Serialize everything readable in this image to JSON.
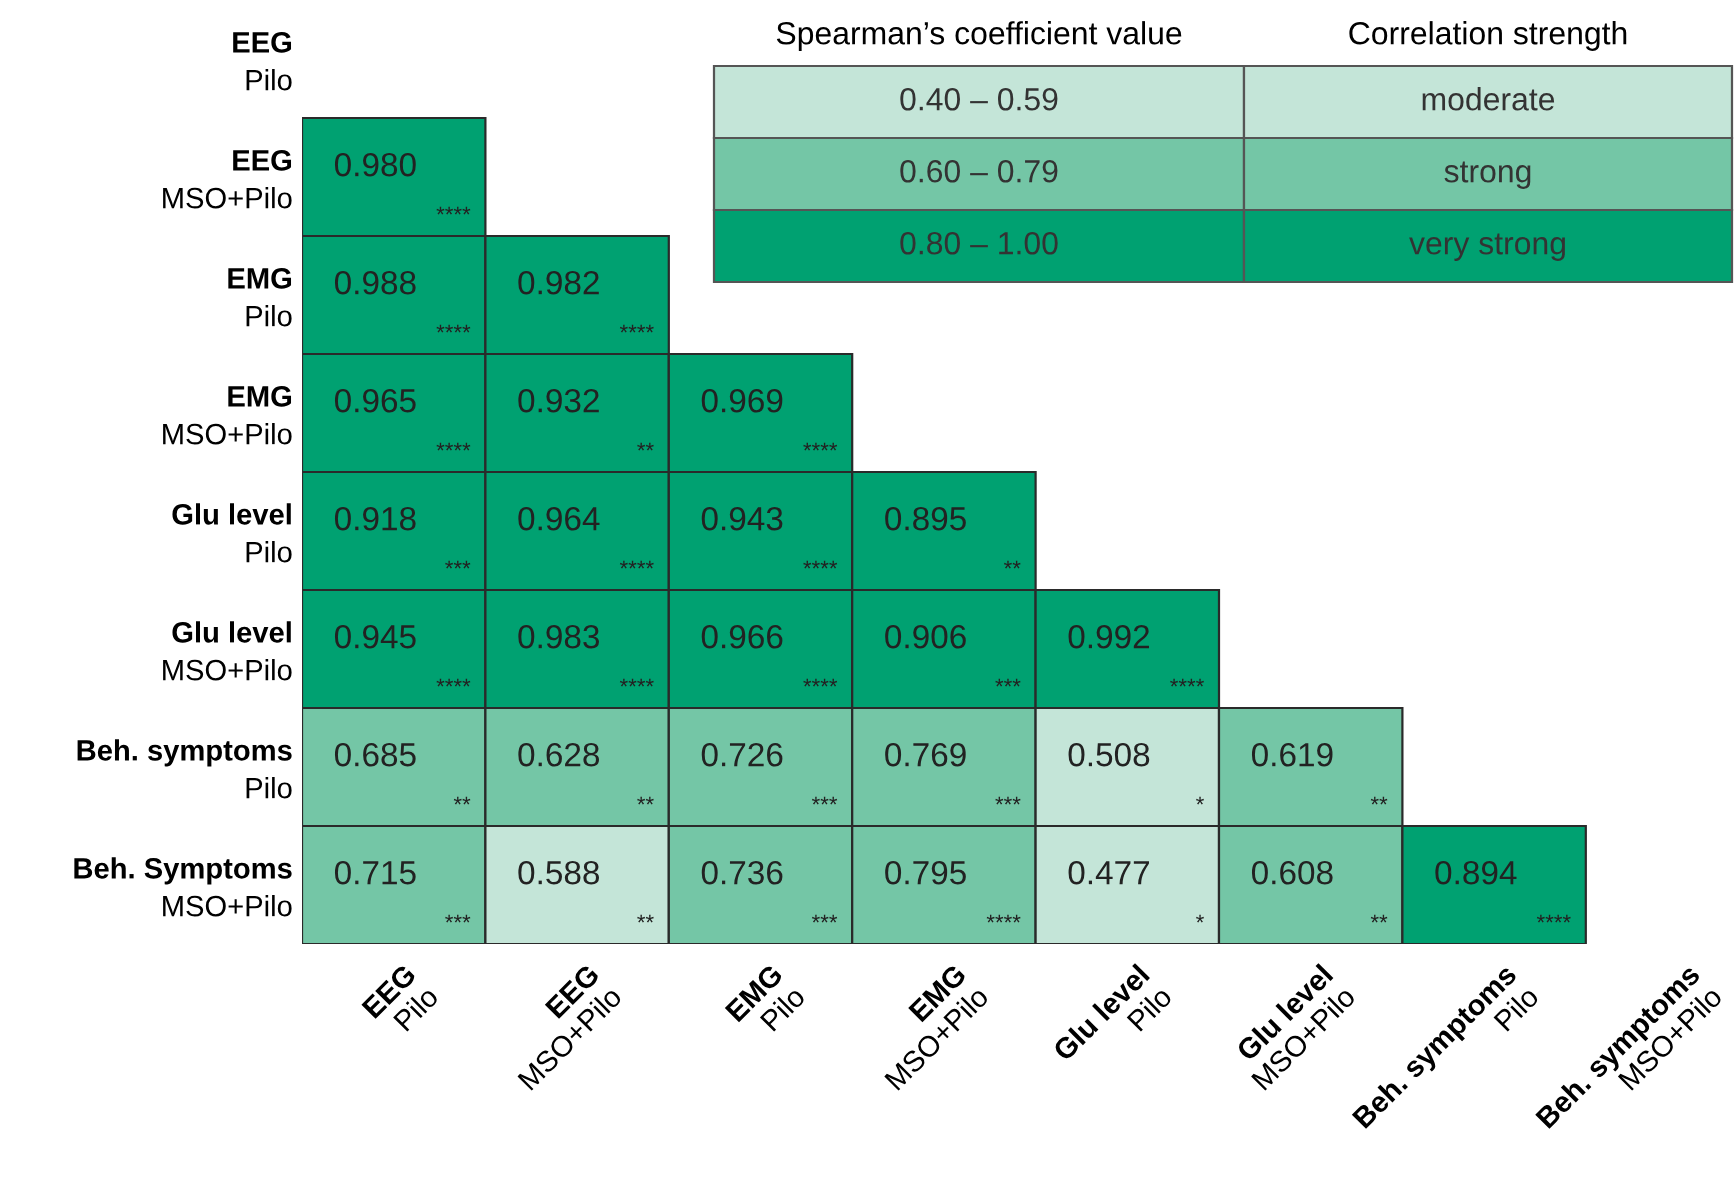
{
  "chart_data": {
    "type": "heatmap",
    "categories": [
      "EEG\nPilo",
      "EEG\nMSO+Pilo",
      "EMG\nPilo",
      "EMG\nMSO+Pilo",
      "Glu level\nPilo",
      "Glu level\nMSO+Pilo",
      "Beh. symptoms\nPilo",
      "Beh. symptoms\nMSO+Pilo"
    ],
    "y_categories": [
      "EEG\nPilo",
      "EEG\nMSO+Pilo",
      "EMG\nPilo",
      "EMG\nMSO+Pilo",
      "Glu level\nPilo",
      "Glu level\nMSO+Pilo",
      "Beh. symptoms\nPilo",
      "Beh. Symptoms\nMSO+Pilo"
    ],
    "cells": [
      [
        null,
        null,
        null,
        null,
        null,
        null,
        null,
        null
      ],
      [
        0.98,
        null,
        null,
        null,
        null,
        null,
        null,
        null
      ],
      [
        0.988,
        0.982,
        null,
        null,
        null,
        null,
        null,
        null
      ],
      [
        0.965,
        0.932,
        0.969,
        null,
        null,
        null,
        null,
        null
      ],
      [
        0.918,
        0.964,
        0.943,
        0.895,
        null,
        null,
        null,
        null
      ],
      [
        0.945,
        0.983,
        0.966,
        0.906,
        0.992,
        null,
        null,
        null
      ],
      [
        0.685,
        0.628,
        0.726,
        0.769,
        0.508,
        0.619,
        null,
        null
      ],
      [
        0.715,
        0.588,
        0.736,
        0.795,
        0.477,
        0.608,
        0.894,
        null
      ]
    ],
    "colors": [
      [
        null,
        null,
        null,
        null,
        null,
        null,
        null,
        null
      ],
      [
        "#00a171",
        null,
        null,
        null,
        null,
        null,
        null,
        null
      ],
      [
        "#00a171",
        "#00a171",
        null,
        null,
        null,
        null,
        null,
        null
      ],
      [
        "#00a171",
        "#00a171",
        "#00a171",
        null,
        null,
        null,
        null,
        null
      ],
      [
        "#00a171",
        "#00a171",
        "#00a171",
        "#00a171",
        null,
        null,
        null,
        null
      ],
      [
        "#00a171",
        "#00a171",
        "#00a171",
        "#00a171",
        "#00a171",
        null,
        null,
        null
      ],
      [
        "#74c6a6",
        "#74c6a6",
        "#74c6a6",
        "#74c6a6",
        "#c4e5d8",
        "#74c6a6",
        null,
        null
      ],
      [
        "#74c6a6",
        "#c4e5d8",
        "#74c6a6",
        "#74c6a6",
        "#c4e5d8",
        "#74c6a6",
        "#00a171",
        null
      ]
    ],
    "data_labels": true,
    "cell_labels": [
      [
        null,
        null,
        null,
        null,
        null,
        null,
        null,
        null
      ],
      [
        "0.980",
        null,
        null,
        null,
        null,
        null,
        null,
        null
      ],
      [
        "0.988",
        "0.982",
        null,
        null,
        null,
        null,
        null,
        null
      ],
      [
        "0.965",
        "0.932",
        "0.969",
        null,
        null,
        null,
        null,
        null
      ],
      [
        "0.918",
        "0.964",
        "0.943",
        "0.895",
        null,
        null,
        null,
        null
      ],
      [
        "0.945",
        "0.983",
        "0.966",
        "0.906",
        "0.992",
        null,
        null,
        null
      ],
      [
        "0.685",
        "0.628",
        "0.726",
        "0.769",
        "0.508",
        "0.619",
        null,
        null
      ],
      [
        "0.715",
        "0.588",
        "0.736",
        "0.795",
        "0.477",
        "0.608",
        "0.894",
        null
      ]
    ],
    "clabel": "Spearman’s coefficient value",
    "legend_title": "Correlation strength",
    "annotations": [
      "0.40 – 0.59",
      "moderate",
      "0.60 – 0.79",
      "strong",
      "0.80 – 1.00",
      "very strong",
      "****",
      "****",
      "****",
      "****",
      "**",
      "****",
      "***",
      "****",
      "****",
      "**",
      "****",
      "****",
      "****",
      "***",
      "****",
      "**",
      "**",
      "***",
      "***",
      "*",
      "**",
      "***",
      "**",
      "***",
      "****",
      "*",
      "**",
      "****"
    ]
  }
}
